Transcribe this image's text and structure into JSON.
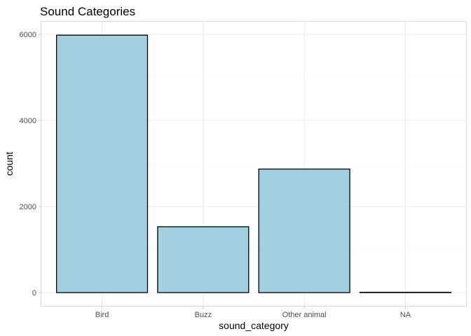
{
  "chart_data": {
    "type": "bar",
    "title": "Sound Categories",
    "xlabel": "sound_category",
    "ylabel": "count",
    "categories": [
      "Bird",
      "Buzz",
      "Other animal",
      "NA"
    ],
    "values": [
      5980,
      1530,
      2870,
      5
    ],
    "ylim": [
      0,
      6300
    ],
    "yticks": [
      0,
      2000,
      4000,
      6000
    ],
    "ytick_labels": [
      "0",
      "2000",
      "4000",
      "6000"
    ],
    "grid": true,
    "legend": "none",
    "colors": {
      "bar_fill": "#a1cfe0",
      "bar_stroke": "#000000",
      "background": "#ffffff",
      "grid": "#ebebeb",
      "panel_border": "#d9d9d9"
    }
  }
}
